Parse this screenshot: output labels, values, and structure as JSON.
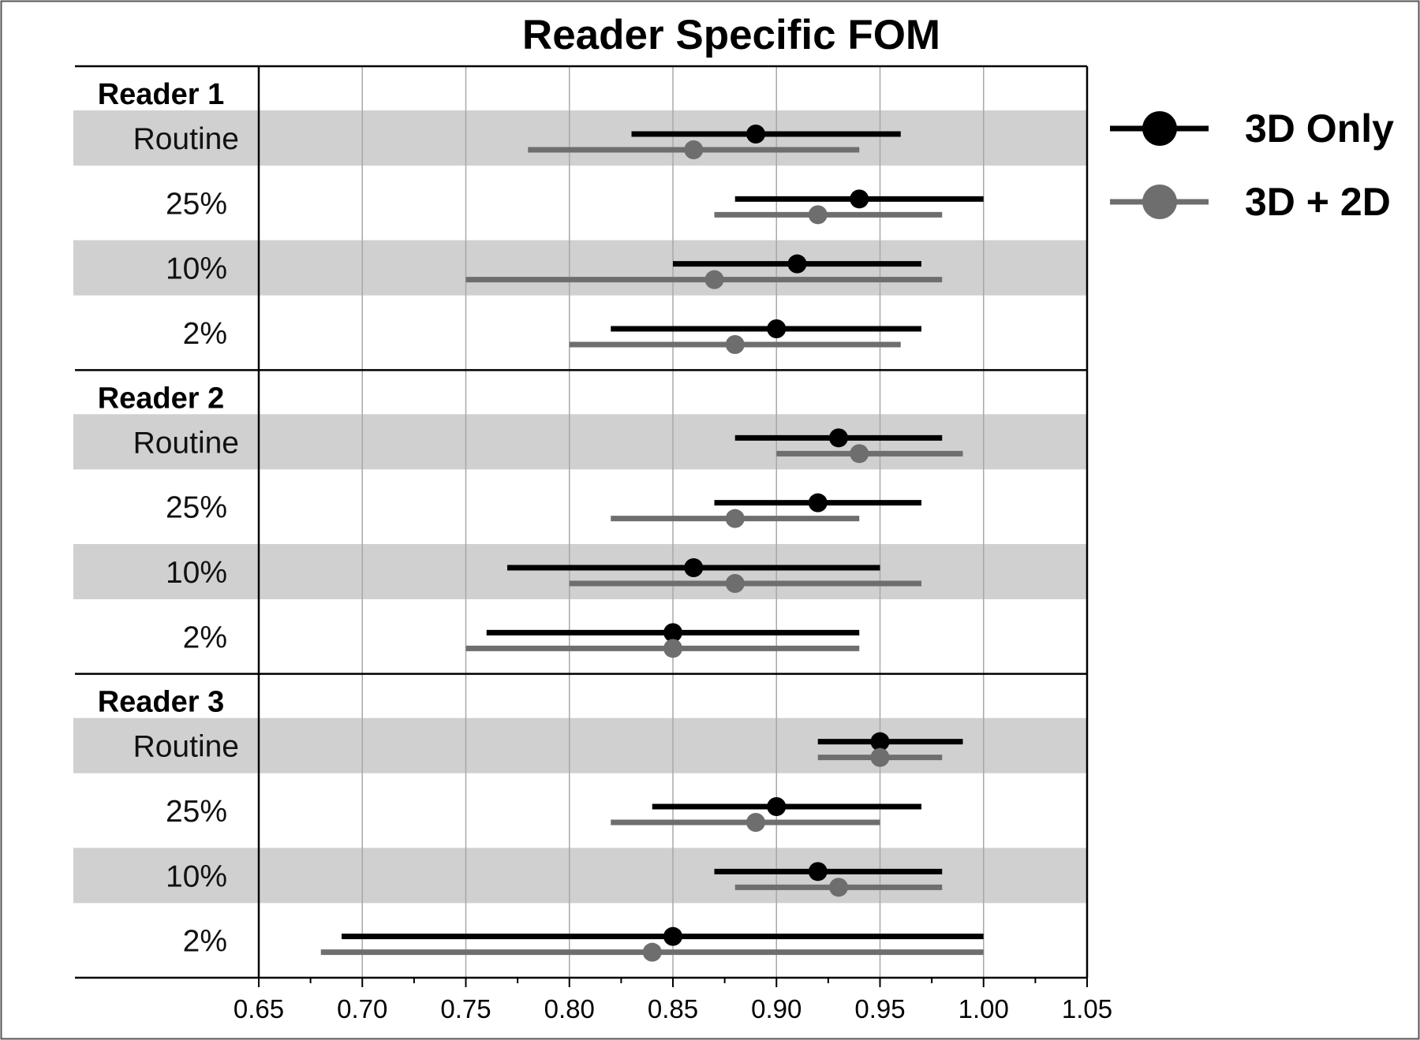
{
  "chart_data": {
    "type": "forest",
    "title": "Reader Specific FOM",
    "xlabel": "",
    "ylabel": "",
    "xlim": [
      0.65,
      1.05
    ],
    "x_ticks": [
      "0.65",
      "0.70",
      "0.75",
      "0.80",
      "0.85",
      "0.90",
      "0.95",
      "1.00",
      "1.05"
    ],
    "grid": "vertical",
    "legend_position": "top-right",
    "series": [
      {
        "name": "3D Only",
        "color": "#000000"
      },
      {
        "name": "3D + 2D",
        "color": "#6e6e6e"
      }
    ],
    "row_shading": "#d0d0d0",
    "groups": [
      {
        "label": "Reader 1",
        "rows": [
          {
            "label": "Routine",
            "shaded": true,
            "values": [
              {
                "est": 0.89,
                "lo": 0.83,
                "hi": 0.96
              },
              {
                "est": 0.86,
                "lo": 0.78,
                "hi": 0.94
              }
            ]
          },
          {
            "label": "25%",
            "shaded": false,
            "values": [
              {
                "est": 0.94,
                "lo": 0.88,
                "hi": 1.0
              },
              {
                "est": 0.92,
                "lo": 0.87,
                "hi": 0.98
              }
            ]
          },
          {
            "label": "10%",
            "shaded": true,
            "values": [
              {
                "est": 0.91,
                "lo": 0.85,
                "hi": 0.97
              },
              {
                "est": 0.87,
                "lo": 0.75,
                "hi": 0.98
              }
            ]
          },
          {
            "label": "2%",
            "shaded": false,
            "values": [
              {
                "est": 0.9,
                "lo": 0.82,
                "hi": 0.97
              },
              {
                "est": 0.88,
                "lo": 0.8,
                "hi": 0.96
              }
            ]
          }
        ]
      },
      {
        "label": "Reader 2",
        "rows": [
          {
            "label": "Routine",
            "shaded": true,
            "values": [
              {
                "est": 0.93,
                "lo": 0.88,
                "hi": 0.98
              },
              {
                "est": 0.94,
                "lo": 0.9,
                "hi": 0.99
              }
            ]
          },
          {
            "label": "25%",
            "shaded": false,
            "values": [
              {
                "est": 0.92,
                "lo": 0.87,
                "hi": 0.97
              },
              {
                "est": 0.88,
                "lo": 0.82,
                "hi": 0.94
              }
            ]
          },
          {
            "label": "10%",
            "shaded": true,
            "values": [
              {
                "est": 0.86,
                "lo": 0.77,
                "hi": 0.95
              },
              {
                "est": 0.88,
                "lo": 0.8,
                "hi": 0.97
              }
            ]
          },
          {
            "label": "2%",
            "shaded": false,
            "values": [
              {
                "est": 0.85,
                "lo": 0.76,
                "hi": 0.94
              },
              {
                "est": 0.85,
                "lo": 0.75,
                "hi": 0.94
              }
            ]
          }
        ]
      },
      {
        "label": "Reader 3",
        "rows": [
          {
            "label": "Routine",
            "shaded": true,
            "values": [
              {
                "est": 0.95,
                "lo": 0.92,
                "hi": 0.99
              },
              {
                "est": 0.95,
                "lo": 0.92,
                "hi": 0.98
              }
            ]
          },
          {
            "label": "25%",
            "shaded": false,
            "values": [
              {
                "est": 0.9,
                "lo": 0.84,
                "hi": 0.97
              },
              {
                "est": 0.89,
                "lo": 0.82,
                "hi": 0.95
              }
            ]
          },
          {
            "label": "10%",
            "shaded": true,
            "values": [
              {
                "est": 0.92,
                "lo": 0.87,
                "hi": 0.98
              },
              {
                "est": 0.93,
                "lo": 0.88,
                "hi": 0.98
              }
            ]
          },
          {
            "label": "2%",
            "shaded": false,
            "values": [
              {
                "est": 0.85,
                "lo": 0.69,
                "hi": 1.0
              },
              {
                "est": 0.84,
                "lo": 0.68,
                "hi": 1.0
              }
            ]
          }
        ]
      }
    ]
  }
}
